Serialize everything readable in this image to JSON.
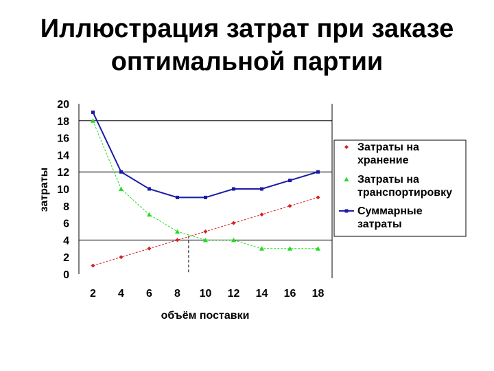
{
  "slide": {
    "title_lines": [
      "Иллюстрация затрат при заказе",
      "оптимальной партии"
    ]
  },
  "chart_data": {
    "type": "line",
    "title": "",
    "xlabel": "объём поставки",
    "ylabel": "затраты",
    "x": [
      2,
      4,
      6,
      8,
      10,
      12,
      14,
      16,
      18
    ],
    "ylim": [
      0,
      20
    ],
    "yticks": [
      0,
      2,
      4,
      6,
      8,
      10,
      12,
      14,
      16,
      18,
      20
    ],
    "grid": "horizontal at 4, 12, 18",
    "series": [
      {
        "name": "Затраты на хранение",
        "color": "#d62020",
        "marker": "diamond",
        "dashed": true,
        "values": [
          1,
          2,
          3,
          4,
          5,
          6,
          7,
          8,
          9
        ]
      },
      {
        "name": "Затраты на транспортировку",
        "color": "#22dd22",
        "marker": "triangle",
        "dashed": true,
        "values": [
          18,
          10,
          7,
          5,
          4,
          4,
          3,
          3,
          3
        ]
      },
      {
        "name": "Суммарные затраты",
        "color": "#1a1aa8",
        "marker": "square",
        "dashed": false,
        "values": [
          19,
          12,
          10,
          9,
          9,
          10,
          10,
          11,
          12
        ]
      }
    ],
    "reference_line_x": 8.8,
    "legend_position": "right",
    "legend_lines": [
      [
        "Затраты на",
        "хранение"
      ],
      [
        "Затраты на",
        "транспортировку"
      ],
      [
        "Суммарные",
        "затраты"
      ]
    ]
  }
}
